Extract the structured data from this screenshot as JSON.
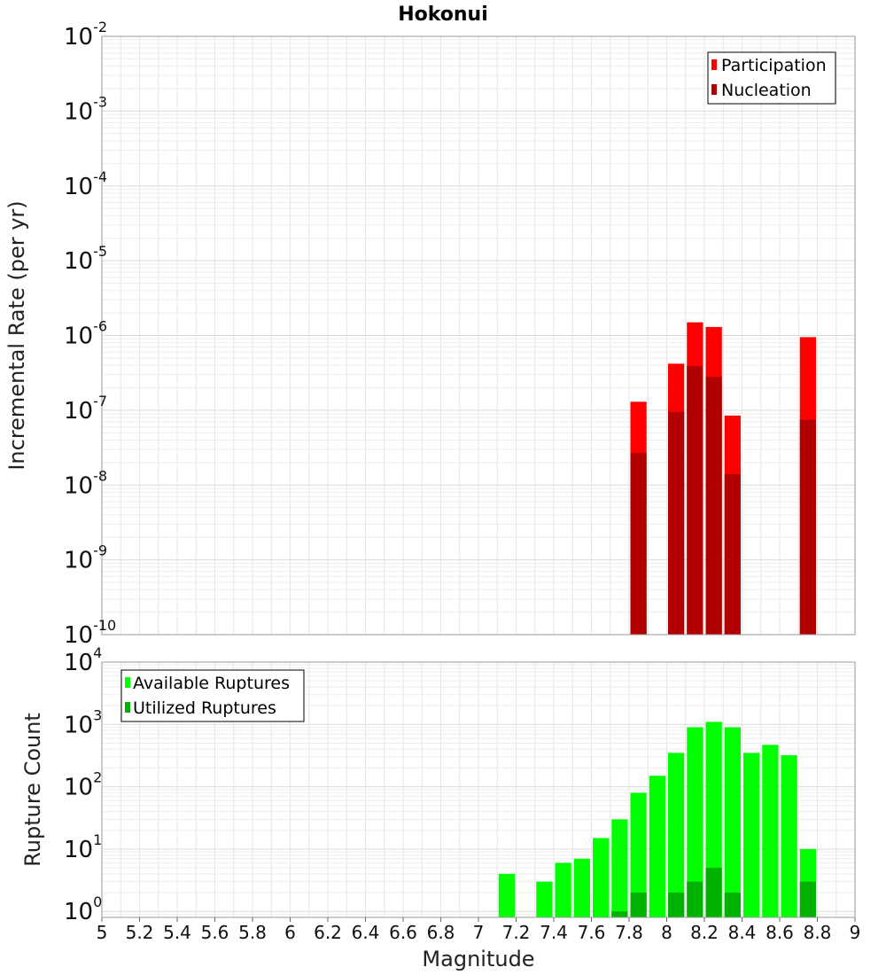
{
  "chart_data": [
    {
      "type": "bar",
      "scale": "log",
      "title": "Hokonui",
      "xlabel": "",
      "ylabel": "Incremental Rate (per yr)",
      "xlim": [
        5,
        9
      ],
      "ylim": [
        1e-10,
        0.01
      ],
      "y_ticks": [
        {
          "base": "10",
          "exp": "-2",
          "value": 0.01
        },
        {
          "base": "10",
          "exp": "-3",
          "value": 0.001
        },
        {
          "base": "10",
          "exp": "-4",
          "value": 0.0001
        },
        {
          "base": "10",
          "exp": "-5",
          "value": 1e-05
        },
        {
          "base": "10",
          "exp": "-6",
          "value": 1e-06
        },
        {
          "base": "10",
          "exp": "-7",
          "value": 1e-07
        },
        {
          "base": "10",
          "exp": "-8",
          "value": 1e-08
        },
        {
          "base": "10",
          "exp": "-9",
          "value": 1e-09
        },
        {
          "base": "10",
          "exp": "-10",
          "value": 1e-10
        }
      ],
      "bin_width": 0.1,
      "grid": true,
      "legend_position": "top-right",
      "series": [
        {
          "name": "Participation",
          "color": "#ff0000",
          "x": [
            7.85,
            8.05,
            8.15,
            8.25,
            8.35,
            8.75
          ],
          "values": [
            1.3e-07,
            4.2e-07,
            1.5e-06,
            1.3e-06,
            8.5e-08,
            9.5e-07
          ]
        },
        {
          "name": "Nucleation",
          "color": "#b20000",
          "x": [
            7.85,
            8.05,
            8.15,
            8.25,
            8.35,
            8.75
          ],
          "values": [
            2.7e-08,
            9.5e-08,
            3.9e-07,
            2.8e-07,
            1.4e-08,
            7.5e-08
          ]
        }
      ]
    },
    {
      "type": "bar",
      "scale": "log",
      "title": "",
      "xlabel": "Magnitude",
      "ylabel": "Rupture Count",
      "xlim": [
        5,
        9
      ],
      "ylim": [
        0.8,
        10000
      ],
      "y_ticks": [
        {
          "base": "10",
          "exp": "4",
          "value": 10000
        },
        {
          "base": "10",
          "exp": "3",
          "value": 1000
        },
        {
          "base": "10",
          "exp": "2",
          "value": 100
        },
        {
          "base": "10",
          "exp": "1",
          "value": 10
        },
        {
          "base": "10",
          "exp": "0",
          "value": 1
        }
      ],
      "x_ticks": [
        "5",
        "5.2",
        "5.4",
        "5.6",
        "5.8",
        "6",
        "6.2",
        "6.4",
        "6.6",
        "6.8",
        "7",
        "7.2",
        "7.4",
        "7.6",
        "7.8",
        "8",
        "8.2",
        "8.4",
        "8.6",
        "8.8",
        "9"
      ],
      "bin_width": 0.1,
      "grid": true,
      "legend_position": "top-left",
      "series": [
        {
          "name": "Available Ruptures",
          "color": "#00ff00",
          "x": [
            7.15,
            7.35,
            7.45,
            7.55,
            7.65,
            7.75,
            7.85,
            7.95,
            8.05,
            8.15,
            8.25,
            8.35,
            8.45,
            8.55,
            8.65,
            8.75
          ],
          "values": [
            4,
            3,
            6,
            7,
            15,
            30,
            80,
            150,
            350,
            900,
            1100,
            900,
            350,
            470,
            320,
            10
          ]
        },
        {
          "name": "Utilized Ruptures",
          "color": "#00b200",
          "x": [
            7.75,
            7.85,
            8.05,
            8.15,
            8.25,
            8.35,
            8.75
          ],
          "values": [
            1,
            2,
            2,
            3,
            5,
            2,
            3
          ]
        }
      ]
    }
  ]
}
